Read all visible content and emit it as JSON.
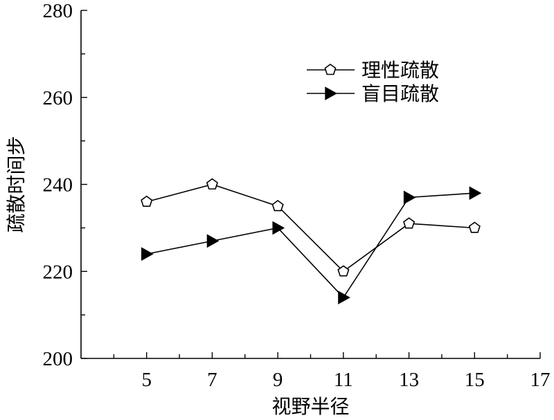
{
  "chart_data": {
    "type": "line",
    "xlabel": "视野半径",
    "ylabel": "疏散时间步",
    "xlim": [
      3,
      17
    ],
    "ylim": [
      200,
      280
    ],
    "x_ticks": [
      5,
      7,
      9,
      11,
      13,
      15,
      17
    ],
    "y_ticks": [
      200,
      220,
      240,
      260,
      280
    ],
    "legend_position": "top-right",
    "grid": false,
    "series": [
      {
        "name": "理性疏散",
        "marker": "pentagon-open",
        "color": "#000000",
        "x": [
          5,
          7,
          9,
          11,
          13,
          15
        ],
        "y": [
          236,
          240,
          235,
          220,
          231,
          230
        ]
      },
      {
        "name": "盲目疏散",
        "marker": "triangle-right-filled",
        "color": "#000000",
        "x": [
          5,
          7,
          9,
          11,
          13,
          15
        ],
        "y": [
          224,
          227,
          230,
          214,
          237,
          238
        ]
      }
    ]
  }
}
